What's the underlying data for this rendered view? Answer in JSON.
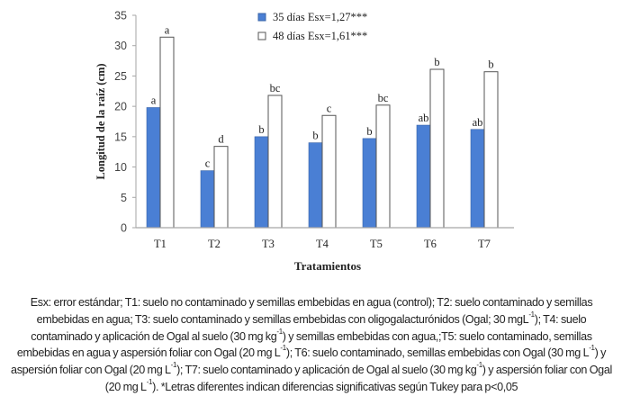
{
  "chart_data": {
    "type": "bar",
    "xlabel": "Tratamientos",
    "ylabel": "Longitud de la raíz (cm)",
    "ylim": [
      0,
      35
    ],
    "yticks": [
      0,
      5,
      10,
      15,
      20,
      25,
      30,
      35
    ],
    "categories": [
      "T1",
      "T2",
      "T3",
      "T4",
      "T5",
      "T6",
      "T7"
    ],
    "legend_position": "top-center",
    "grid": false,
    "series": [
      {
        "name": "35 días Esx=1,27***",
        "color": "#4a7fd4",
        "values": [
          19.8,
          9.4,
          15.0,
          14.0,
          14.7,
          16.9,
          16.2
        ],
        "letters": [
          "a",
          "c",
          "b",
          "b",
          "b",
          "ab",
          "ab"
        ]
      },
      {
        "name": "48 días Esx=1,61***",
        "color": "#ffffff",
        "values": [
          31.4,
          13.4,
          21.8,
          18.5,
          20.2,
          26.1,
          25.7
        ],
        "letters": [
          "a",
          "d",
          "bc",
          "c",
          "bc",
          "b",
          "b"
        ]
      }
    ]
  },
  "caption": [
    {
      "t": "Esx: error estándar; T1: suelo no contaminado y semillas embebidas en agua (control); T2: suelo contaminado y semillas embebidas en agua; T3: suelo contaminado y semillas embebidas con oligogalacturónidos (Ogal; 30 mgL"
    },
    {
      "sup": "-1"
    },
    {
      "t": "); T4: suelo contaminado y aplicación de Ogal al suelo (30 mg kg"
    },
    {
      "sup": "-1"
    },
    {
      "t": ") y semillas embebidas con agua,;T5: suelo contaminado, semillas embebidas en agua y aspersión foliar con Ogal (20 mg L"
    },
    {
      "sup": "-1"
    },
    {
      "t": "); T6: suelo contaminado, semillas embebidas con Ogal (30 mg L"
    },
    {
      "sup": "-1"
    },
    {
      "t": ") y aspersión foliar con Ogal (20 mg L"
    },
    {
      "sup": "-1"
    },
    {
      "t": "); T7: suelo contaminado y aplicación de Ogal al suelo (30 mg kg"
    },
    {
      "sup": "-1"
    },
    {
      "t": ") y aspersión foliar con Ogal (20 mg L"
    },
    {
      "sup": "-1"
    },
    {
      "t": "). *Letras diferentes indican diferencias significativas según Tukey para p<0,05"
    }
  ]
}
